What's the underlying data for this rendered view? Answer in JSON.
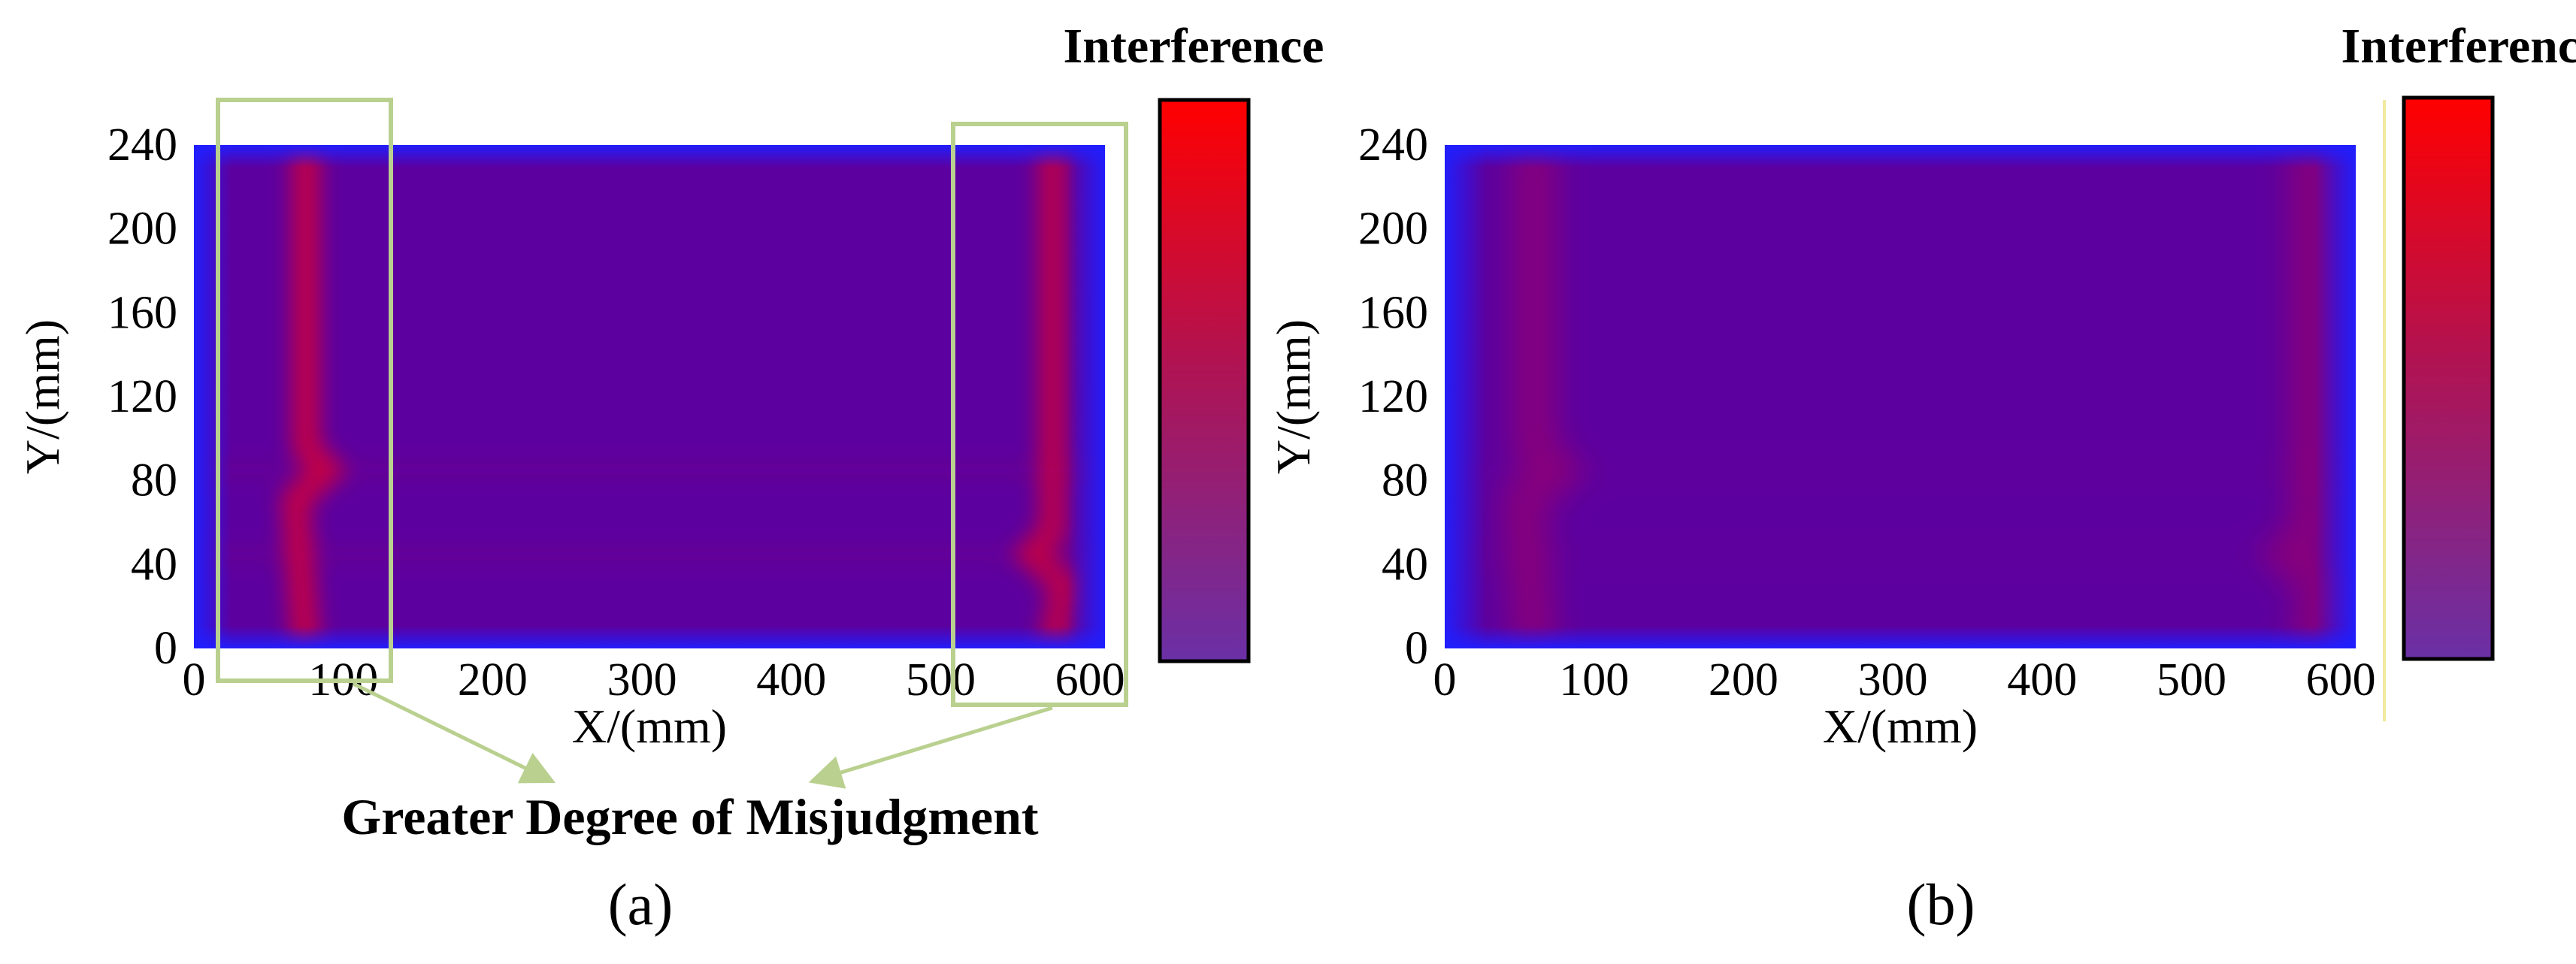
{
  "colors": {
    "background": "#ffffff",
    "field_base": "#5c00a0",
    "field_edge": "#1f1fff",
    "hot": "#d0003a",
    "colorbar_top": "#ff0000",
    "colorbar_bottom": "#6a30a6",
    "highlight_box": "#b9d08f",
    "separator": "#f2e9a0"
  },
  "chart_data": [
    {
      "type": "heatmap",
      "panel_label": "(a)",
      "xlabel": "X/(mm)",
      "ylabel": "Y/(mm)",
      "xlim": [
        0,
        610
      ],
      "ylim": [
        0,
        240
      ],
      "xticks": [
        "0",
        "100",
        "200",
        "300",
        "400",
        "500",
        "600"
      ],
      "yticks": [
        "0",
        "40",
        "80",
        "120",
        "160",
        "200",
        "240"
      ],
      "colorbar_label": "Interference",
      "hot_bands": [
        {
          "x_mm": 75,
          "y_mm_range": [
            0,
            240
          ],
          "kink_y_mm": 85,
          "intensity": 0.85
        },
        {
          "x_mm": 575,
          "y_mm_range": [
            0,
            240
          ],
          "kink_y_mm": 45,
          "intensity": 0.8
        }
      ],
      "annotation": "Greater Degree of Misjudgment"
    },
    {
      "type": "heatmap",
      "panel_label": "(b)",
      "xlabel": "X/(mm)",
      "ylabel": "Y/(mm)",
      "xlim": [
        0,
        610
      ],
      "ylim": [
        0,
        240
      ],
      "xticks": [
        "0",
        "100",
        "200",
        "300",
        "400",
        "500",
        "600"
      ],
      "yticks": [
        "0",
        "40",
        "80",
        "120",
        "160",
        "200",
        "240"
      ],
      "colorbar_label": "Interference",
      "hot_bands": [
        {
          "x_mm": 60,
          "y_mm_range": [
            0,
            240
          ],
          "kink_y_mm": 85,
          "intensity": 0.35
        },
        {
          "x_mm": 580,
          "y_mm_range": [
            0,
            240
          ],
          "kink_y_mm": 45,
          "intensity": 0.35
        }
      ]
    }
  ]
}
